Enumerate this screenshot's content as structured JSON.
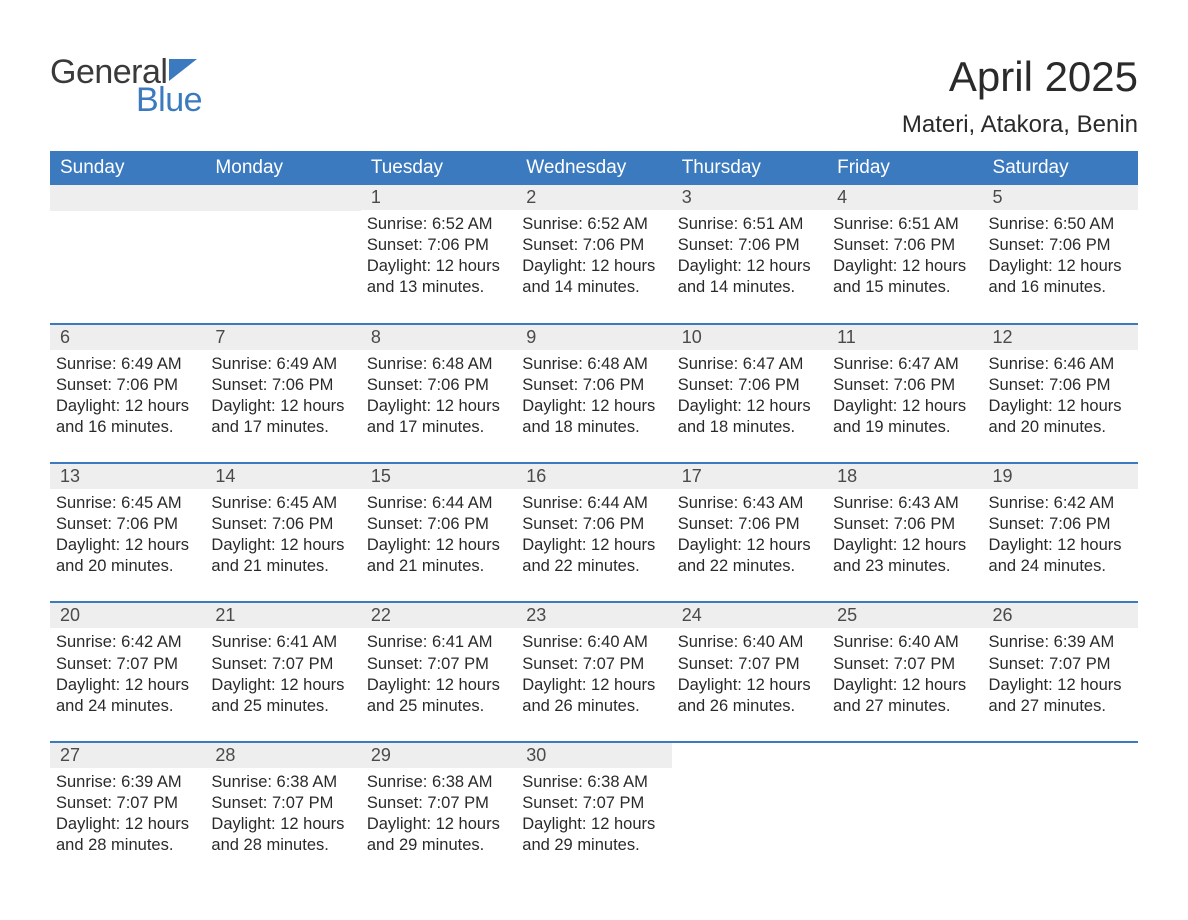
{
  "logo": {
    "text_top": "General",
    "text_bottom": "Blue",
    "flag_color": "#3c7abf",
    "text_color_top": "#3a3a3a",
    "text_color_bottom": "#3c7abf"
  },
  "title": "April 2025",
  "location": "Materi, Atakora, Benin",
  "header_bg": "#3c7abf",
  "header_fg": "#ffffff",
  "daynum_bg": "#eeeeee",
  "week_border": "#3c7abf",
  "day_headers": [
    "Sunday",
    "Monday",
    "Tuesday",
    "Wednesday",
    "Thursday",
    "Friday",
    "Saturday"
  ],
  "sunrise_label": "Sunrise: ",
  "sunset_label": "Sunset: ",
  "daylight_label": "Daylight: ",
  "weeks": [
    [
      null,
      null,
      {
        "d": "1",
        "sr": "6:52 AM",
        "ss": "7:06 PM",
        "dl": "12 hours and 13 minutes."
      },
      {
        "d": "2",
        "sr": "6:52 AM",
        "ss": "7:06 PM",
        "dl": "12 hours and 14 minutes."
      },
      {
        "d": "3",
        "sr": "6:51 AM",
        "ss": "7:06 PM",
        "dl": "12 hours and 14 minutes."
      },
      {
        "d": "4",
        "sr": "6:51 AM",
        "ss": "7:06 PM",
        "dl": "12 hours and 15 minutes."
      },
      {
        "d": "5",
        "sr": "6:50 AM",
        "ss": "7:06 PM",
        "dl": "12 hours and 16 minutes."
      }
    ],
    [
      {
        "d": "6",
        "sr": "6:49 AM",
        "ss": "7:06 PM",
        "dl": "12 hours and 16 minutes."
      },
      {
        "d": "7",
        "sr": "6:49 AM",
        "ss": "7:06 PM",
        "dl": "12 hours and 17 minutes."
      },
      {
        "d": "8",
        "sr": "6:48 AM",
        "ss": "7:06 PM",
        "dl": "12 hours and 17 minutes."
      },
      {
        "d": "9",
        "sr": "6:48 AM",
        "ss": "7:06 PM",
        "dl": "12 hours and 18 minutes."
      },
      {
        "d": "10",
        "sr": "6:47 AM",
        "ss": "7:06 PM",
        "dl": "12 hours and 18 minutes."
      },
      {
        "d": "11",
        "sr": "6:47 AM",
        "ss": "7:06 PM",
        "dl": "12 hours and 19 minutes."
      },
      {
        "d": "12",
        "sr": "6:46 AM",
        "ss": "7:06 PM",
        "dl": "12 hours and 20 minutes."
      }
    ],
    [
      {
        "d": "13",
        "sr": "6:45 AM",
        "ss": "7:06 PM",
        "dl": "12 hours and 20 minutes."
      },
      {
        "d": "14",
        "sr": "6:45 AM",
        "ss": "7:06 PM",
        "dl": "12 hours and 21 minutes."
      },
      {
        "d": "15",
        "sr": "6:44 AM",
        "ss": "7:06 PM",
        "dl": "12 hours and 21 minutes."
      },
      {
        "d": "16",
        "sr": "6:44 AM",
        "ss": "7:06 PM",
        "dl": "12 hours and 22 minutes."
      },
      {
        "d": "17",
        "sr": "6:43 AM",
        "ss": "7:06 PM",
        "dl": "12 hours and 22 minutes."
      },
      {
        "d": "18",
        "sr": "6:43 AM",
        "ss": "7:06 PM",
        "dl": "12 hours and 23 minutes."
      },
      {
        "d": "19",
        "sr": "6:42 AM",
        "ss": "7:06 PM",
        "dl": "12 hours and 24 minutes."
      }
    ],
    [
      {
        "d": "20",
        "sr": "6:42 AM",
        "ss": "7:07 PM",
        "dl": "12 hours and 24 minutes."
      },
      {
        "d": "21",
        "sr": "6:41 AM",
        "ss": "7:07 PM",
        "dl": "12 hours and 25 minutes."
      },
      {
        "d": "22",
        "sr": "6:41 AM",
        "ss": "7:07 PM",
        "dl": "12 hours and 25 minutes."
      },
      {
        "d": "23",
        "sr": "6:40 AM",
        "ss": "7:07 PM",
        "dl": "12 hours and 26 minutes."
      },
      {
        "d": "24",
        "sr": "6:40 AM",
        "ss": "7:07 PM",
        "dl": "12 hours and 26 minutes."
      },
      {
        "d": "25",
        "sr": "6:40 AM",
        "ss": "7:07 PM",
        "dl": "12 hours and 27 minutes."
      },
      {
        "d": "26",
        "sr": "6:39 AM",
        "ss": "7:07 PM",
        "dl": "12 hours and 27 minutes."
      }
    ],
    [
      {
        "d": "27",
        "sr": "6:39 AM",
        "ss": "7:07 PM",
        "dl": "12 hours and 28 minutes."
      },
      {
        "d": "28",
        "sr": "6:38 AM",
        "ss": "7:07 PM",
        "dl": "12 hours and 28 minutes."
      },
      {
        "d": "29",
        "sr": "6:38 AM",
        "ss": "7:07 PM",
        "dl": "12 hours and 29 minutes."
      },
      {
        "d": "30",
        "sr": "6:38 AM",
        "ss": "7:07 PM",
        "dl": "12 hours and 29 minutes."
      },
      null,
      null,
      null
    ]
  ]
}
